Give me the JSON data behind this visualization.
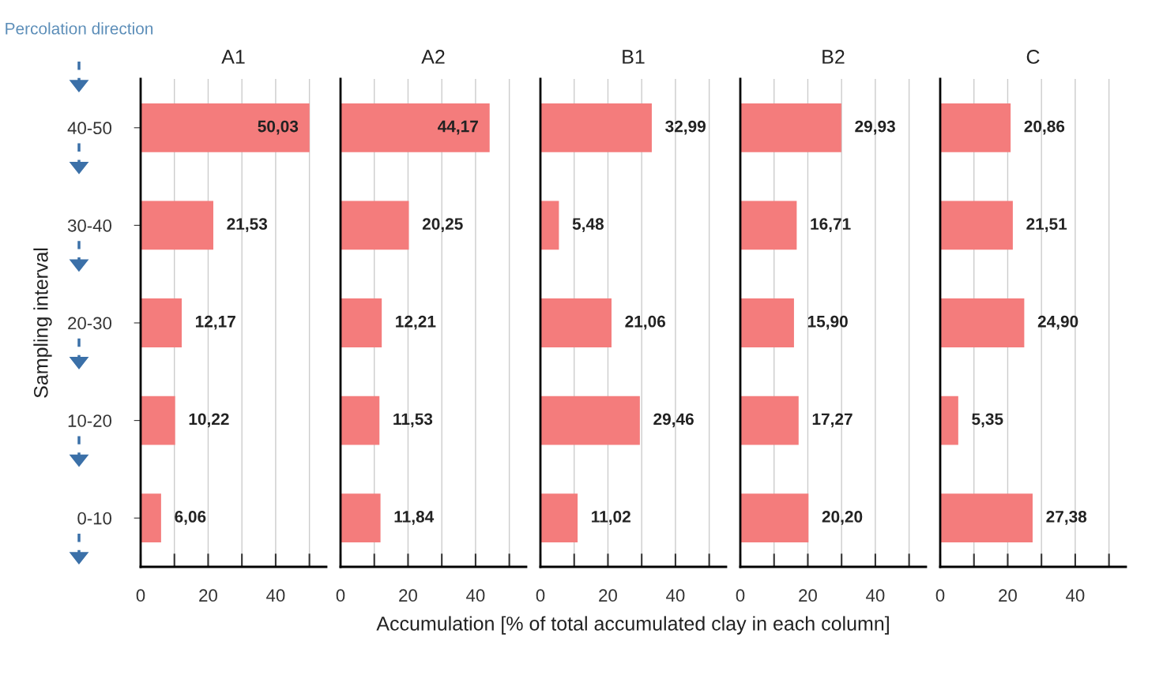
{
  "chart_data": [
    {
      "type": "bar",
      "orientation": "horizontal",
      "title": "A1",
      "ylabel": "Sampling interval",
      "categories": [
        "40-50",
        "30-40",
        "20-30",
        "10-20",
        "0-10"
      ],
      "values": [
        50.03,
        21.53,
        12.17,
        10.22,
        6.06
      ],
      "value_labels": [
        "50,03",
        "21,53",
        "12,17",
        "10,22",
        "6,06"
      ],
      "color": "#f47c7c",
      "xlim": [
        0,
        55
      ],
      "xticks": [
        0,
        {
          "value": 10,
          "label": null
        },
        20,
        {
          "value": 30,
          "label": null
        },
        40,
        {
          "value": 50,
          "label": null
        }
      ],
      "grid": "x",
      "annotations": [
        "Percolation direction"
      ]
    },
    {
      "type": "bar",
      "orientation": "horizontal",
      "title": "A2",
      "categories": [
        null,
        null,
        null,
        null,
        null
      ],
      "values": [
        44.17,
        20.25,
        12.21,
        11.53,
        11.84
      ],
      "value_labels": [
        "44,17",
        "20,25",
        "12,21",
        "11,53",
        "11,84"
      ],
      "color": "#f47c7c",
      "xlim": [
        0,
        55
      ],
      "xticks": [
        0,
        {
          "value": 10,
          "label": null
        },
        20,
        {
          "value": 30,
          "label": null
        },
        40,
        {
          "value": 50,
          "label": null
        }
      ],
      "grid": "x",
      "tick_labels": "x"
    },
    {
      "type": "bar",
      "orientation": "horizontal",
      "title": "B1",
      "xlabel": "Accumulation [% of total accumulated clay in each column]",
      "categories": [
        null,
        null,
        null,
        null,
        null
      ],
      "values": [
        32.99,
        5.48,
        21.06,
        29.46,
        11.02
      ],
      "value_labels": [
        "32,99",
        "5,48",
        "21,06",
        "29,46",
        "11,02"
      ],
      "color": "#f47c7c",
      "xlim": [
        0,
        55
      ],
      "xticks": [
        0,
        {
          "value": 10,
          "label": null
        },
        20,
        {
          "value": 30,
          "label": null
        },
        40,
        {
          "value": 50,
          "label": null
        }
      ],
      "grid": "x",
      "tick_labels": "x"
    },
    {
      "type": "bar",
      "orientation": "horizontal",
      "title": "B2",
      "categories": [
        null,
        null,
        null,
        null,
        null
      ],
      "values": [
        29.93,
        16.71,
        15.9,
        17.27,
        20.2
      ],
      "value_labels": [
        "29,93",
        "16,71",
        "15,90",
        "17,27",
        "20,20"
      ],
      "color": "#f47c7c",
      "xlim": [
        0,
        55
      ],
      "xticks": [
        0,
        {
          "value": 10,
          "label": null
        },
        20,
        {
          "value": 30,
          "label": null
        },
        40,
        {
          "value": 50,
          "label": null
        }
      ],
      "grid": "x",
      "tick_labels": "x"
    },
    {
      "type": "bar",
      "orientation": "horizontal",
      "title": "C",
      "categories": [
        null,
        null,
        null,
        null,
        null
      ],
      "values": [
        20.86,
        21.51,
        24.9,
        5.35,
        27.38
      ],
      "value_labels": [
        "20,86",
        "21,51",
        "24,90",
        "5,35",
        "27,38"
      ],
      "color": "#f47c7c",
      "xlim": [
        0,
        55
      ],
      "xticks": [
        0,
        {
          "value": 10,
          "label": null
        },
        20,
        {
          "value": 30,
          "label": null
        },
        40,
        {
          "value": 50,
          "label": null
        }
      ],
      "grid": "x",
      "tick_labels": "x"
    }
  ]
}
